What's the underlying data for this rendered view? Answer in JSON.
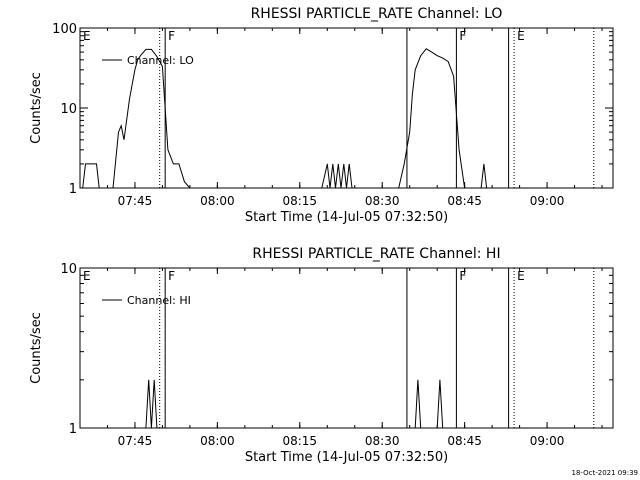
{
  "chart_data": [
    {
      "type": "line",
      "title": "RHESSI PARTICLE_RATE Channel: LO",
      "xlabel": "Start Time (14-Jul-05 07:32:50)",
      "ylabel": "Counts/sec",
      "y_scale": "log",
      "xlim": [
        "07:35",
        "09:12"
      ],
      "ylim": [
        1,
        100
      ],
      "x_ticks": [
        "07:45",
        "08:00",
        "08:15",
        "08:30",
        "08:45",
        "09:00"
      ],
      "y_ticks": [
        "1",
        "10",
        "100"
      ],
      "legend": "top-left",
      "grid": false,
      "series": [
        {
          "name": "Channel: LO",
          "x": [
            "07:35.5",
            "07:36",
            "07:38",
            "07:38.5",
            "07:41",
            "07:42",
            "07:42.5",
            "07:43",
            "07:44",
            "07:45",
            "07:45.5",
            "07:46",
            "07:47",
            "07:48",
            "07:49",
            "07:50",
            "07:51",
            "07:52",
            "07:53",
            "07:54",
            "07:55",
            "08:19",
            "08:20",
            "08:20.5",
            "08:21",
            "08:21.5",
            "08:22",
            "08:22.5",
            "08:23",
            "08:23.5",
            "08:24",
            "08:24.5",
            "08:33",
            "08:34",
            "08:35",
            "08:35.5",
            "08:36",
            "08:37",
            "08:38",
            "08:39",
            "08:40",
            "08:41",
            "08:42",
            "08:43",
            "08:44",
            "08:45",
            "08:48",
            "08:48.5",
            "08:49"
          ],
          "y": [
            1,
            2,
            2,
            1,
            1,
            5,
            6,
            4,
            13,
            30,
            40,
            45,
            54,
            54,
            44,
            33,
            3,
            2,
            2,
            1.2,
            1,
            1,
            2,
            1,
            2,
            1,
            2,
            1,
            2,
            1,
            2,
            1,
            1,
            2,
            5,
            15,
            30,
            45,
            55,
            50,
            45,
            42,
            38,
            25,
            3,
            1,
            1,
            2,
            1
          ]
        }
      ],
      "markers": [
        {
          "label": "E",
          "x": "07:35",
          "style": "dotted"
        },
        {
          "label": "",
          "x": "07:49.5",
          "style": "dotted"
        },
        {
          "label": "F",
          "x": "07:50.5",
          "style": "solid"
        },
        {
          "label": "",
          "x": "08:34.5",
          "style": "solid"
        },
        {
          "label": "F",
          "x": "08:43.5",
          "style": "solid"
        },
        {
          "label": "",
          "x": "08:53",
          "style": "solid"
        },
        {
          "label": "E",
          "x": "08:54",
          "style": "dotted"
        },
        {
          "label": "",
          "x": "09:08.5",
          "style": "dotted"
        }
      ]
    },
    {
      "type": "line",
      "title": "RHESSI PARTICLE_RATE Channel: HI",
      "xlabel": "Start Time (14-Jul-05 07:32:50)",
      "ylabel": "Counts/sec",
      "y_scale": "log",
      "xlim": [
        "07:35",
        "09:12"
      ],
      "ylim": [
        1,
        10
      ],
      "x_ticks": [
        "07:45",
        "08:00",
        "08:15",
        "08:30",
        "08:45",
        "09:00"
      ],
      "y_ticks": [
        "1",
        "10"
      ],
      "legend": "top-left",
      "grid": false,
      "series": [
        {
          "name": "Channel: HI",
          "x": [
            "07:47",
            "07:47.5",
            "07:48",
            "07:48.5",
            "07:49",
            "07:49.5",
            "08:36",
            "08:36.5",
            "08:37",
            "08:37.5",
            "08:38",
            "08:40",
            "08:40.5",
            "08:41"
          ],
          "y": [
            1,
            2,
            1,
            2,
            1,
            1,
            1,
            2,
            1,
            1,
            1,
            1,
            2,
            1
          ]
        }
      ],
      "markers": [
        {
          "label": "E",
          "x": "07:35",
          "style": "dotted"
        },
        {
          "label": "",
          "x": "07:49.5",
          "style": "dotted"
        },
        {
          "label": "F",
          "x": "07:50.5",
          "style": "solid"
        },
        {
          "label": "",
          "x": "08:34.5",
          "style": "solid"
        },
        {
          "label": "F",
          "x": "08:43.5",
          "style": "solid"
        },
        {
          "label": "",
          "x": "08:53",
          "style": "solid"
        },
        {
          "label": "E",
          "x": "08:54",
          "style": "dotted"
        },
        {
          "label": "",
          "x": "09:08.5",
          "style": "dotted"
        }
      ]
    }
  ],
  "footer": {
    "timestamp": "18-Oct-2021 09:39"
  }
}
